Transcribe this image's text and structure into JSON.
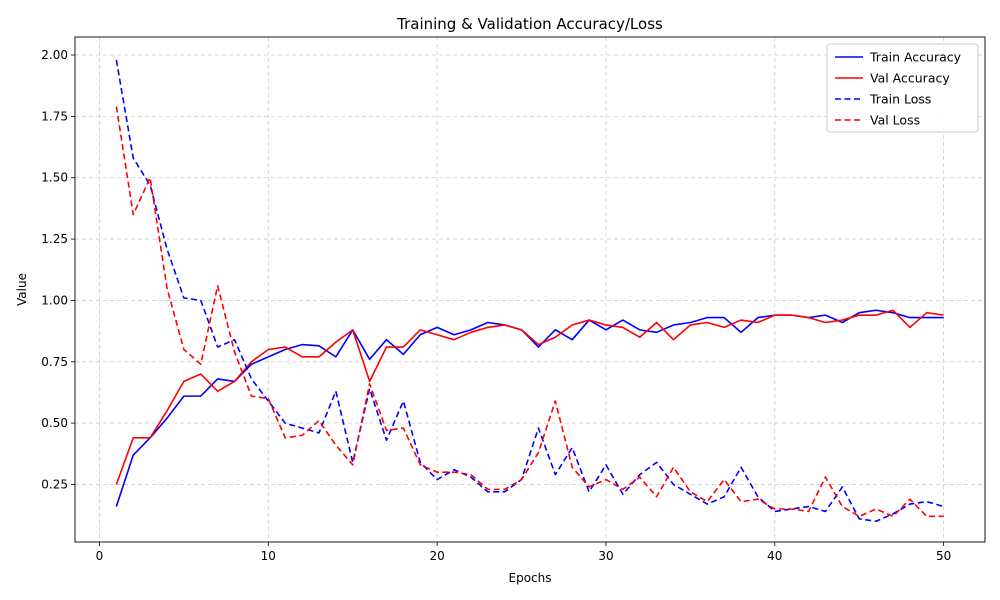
{
  "chart_data": {
    "type": "line",
    "title": "Training & Validation Accuracy/Loss",
    "xlabel": "Epochs",
    "ylabel": "Value",
    "xlim": [
      -1.45,
      52.45
    ],
    "ylim": [
      0.0155,
      2.0735
    ],
    "xticks": [
      0,
      10,
      20,
      30,
      40,
      50
    ],
    "yticks": [
      0.25,
      0.5,
      0.75,
      1.0,
      1.25,
      1.5,
      1.75,
      2.0
    ],
    "ytick_labels": [
      "0.25",
      "0.50",
      "0.75",
      "1.00",
      "1.25",
      "1.50",
      "1.75",
      "2.00"
    ],
    "grid": true,
    "legend_position": "top-right",
    "x": [
      1,
      2,
      3,
      4,
      5,
      6,
      7,
      8,
      9,
      10,
      11,
      12,
      13,
      14,
      15,
      16,
      17,
      18,
      19,
      20,
      21,
      22,
      23,
      24,
      25,
      26,
      27,
      28,
      29,
      30,
      31,
      32,
      33,
      34,
      35,
      36,
      37,
      38,
      39,
      40,
      41,
      42,
      43,
      44,
      45,
      46,
      47,
      48,
      49,
      50
    ],
    "series": [
      {
        "name": "Train Accuracy",
        "color": "#0000ff",
        "style": "solid",
        "values": [
          0.16,
          0.37,
          0.44,
          0.52,
          0.61,
          0.61,
          0.68,
          0.67,
          0.74,
          0.77,
          0.8,
          0.82,
          0.815,
          0.77,
          0.88,
          0.76,
          0.84,
          0.78,
          0.86,
          0.89,
          0.86,
          0.88,
          0.91,
          0.9,
          0.88,
          0.81,
          0.88,
          0.84,
          0.92,
          0.88,
          0.92,
          0.88,
          0.87,
          0.9,
          0.91,
          0.93,
          0.93,
          0.87,
          0.93,
          0.94,
          0.94,
          0.93,
          0.94,
          0.91,
          0.95,
          0.96,
          0.95,
          0.93,
          0.93,
          0.93
        ]
      },
      {
        "name": "Val Accuracy",
        "color": "#ff0000",
        "style": "solid",
        "values": [
          0.25,
          0.44,
          0.44,
          0.55,
          0.67,
          0.7,
          0.63,
          0.67,
          0.75,
          0.8,
          0.81,
          0.77,
          0.77,
          0.83,
          0.88,
          0.67,
          0.81,
          0.81,
          0.88,
          0.86,
          0.84,
          0.87,
          0.89,
          0.9,
          0.88,
          0.82,
          0.85,
          0.9,
          0.92,
          0.9,
          0.89,
          0.85,
          0.91,
          0.84,
          0.9,
          0.91,
          0.89,
          0.92,
          0.91,
          0.94,
          0.94,
          0.93,
          0.91,
          0.92,
          0.94,
          0.94,
          0.96,
          0.89,
          0.95,
          0.94
        ]
      },
      {
        "name": "Train Loss",
        "color": "#0000ff",
        "style": "dashed",
        "values": [
          1.98,
          1.58,
          1.47,
          1.21,
          1.01,
          1.0,
          0.81,
          0.84,
          0.68,
          0.59,
          0.5,
          0.48,
          0.46,
          0.63,
          0.34,
          0.64,
          0.43,
          0.59,
          0.34,
          0.27,
          0.31,
          0.28,
          0.22,
          0.22,
          0.27,
          0.48,
          0.29,
          0.4,
          0.22,
          0.33,
          0.21,
          0.29,
          0.34,
          0.25,
          0.21,
          0.17,
          0.2,
          0.32,
          0.2,
          0.14,
          0.15,
          0.16,
          0.14,
          0.24,
          0.11,
          0.1,
          0.13,
          0.17,
          0.18,
          0.16
        ]
      },
      {
        "name": "Val Loss",
        "color": "#ff0000",
        "style": "dashed",
        "values": [
          1.79,
          1.35,
          1.5,
          1.05,
          0.8,
          0.74,
          1.06,
          0.79,
          0.61,
          0.6,
          0.44,
          0.45,
          0.51,
          0.41,
          0.33,
          0.66,
          0.47,
          0.48,
          0.33,
          0.3,
          0.3,
          0.29,
          0.23,
          0.23,
          0.27,
          0.38,
          0.59,
          0.32,
          0.24,
          0.27,
          0.23,
          0.28,
          0.2,
          0.32,
          0.22,
          0.18,
          0.27,
          0.18,
          0.19,
          0.15,
          0.15,
          0.14,
          0.28,
          0.16,
          0.12,
          0.15,
          0.12,
          0.19,
          0.12,
          0.12
        ]
      }
    ]
  }
}
